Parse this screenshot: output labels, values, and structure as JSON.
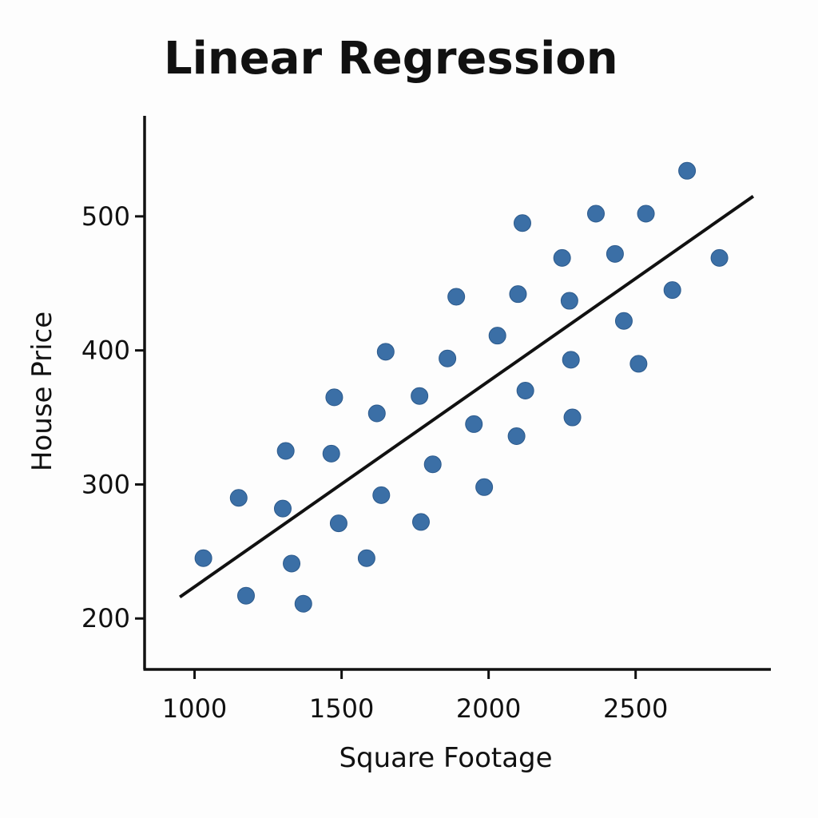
{
  "chart_data": {
    "type": "scatter",
    "title": "Linear Regression",
    "xlabel": "Square Footage",
    "ylabel": "House Price",
    "xlim": [
      830,
      2960
    ],
    "ylim": [
      162,
      575
    ],
    "xticks": [
      1000,
      1500,
      2000,
      2500
    ],
    "yticks": [
      200,
      300,
      400,
      500
    ],
    "grid": false,
    "point_color": "#3b6fa6",
    "line_color": "#111111",
    "series": [
      {
        "type": "scatter",
        "x": [
          1030,
          1150,
          1175,
          1300,
          1310,
          1330,
          1370,
          1465,
          1475,
          1490,
          1585,
          1620,
          1635,
          1650,
          1765,
          1770,
          1810,
          1860,
          1890,
          1950,
          1985,
          2030,
          2095,
          2100,
          2115,
          2125,
          2250,
          2275,
          2280,
          2285,
          2365,
          2430,
          2460,
          2510,
          2535,
          2625,
          2675,
          2785
        ],
        "y": [
          245,
          290,
          217,
          282,
          325,
          241,
          211,
          323,
          365,
          271,
          245,
          353,
          292,
          399,
          366,
          272,
          315,
          394,
          440,
          345,
          298,
          411,
          336,
          442,
          495,
          370,
          469,
          437,
          393,
          350,
          502,
          472,
          422,
          390,
          502,
          445,
          534,
          469
        ]
      },
      {
        "type": "line",
        "x": [
          950,
          2900
        ],
        "y": [
          216,
          515
        ]
      }
    ]
  }
}
